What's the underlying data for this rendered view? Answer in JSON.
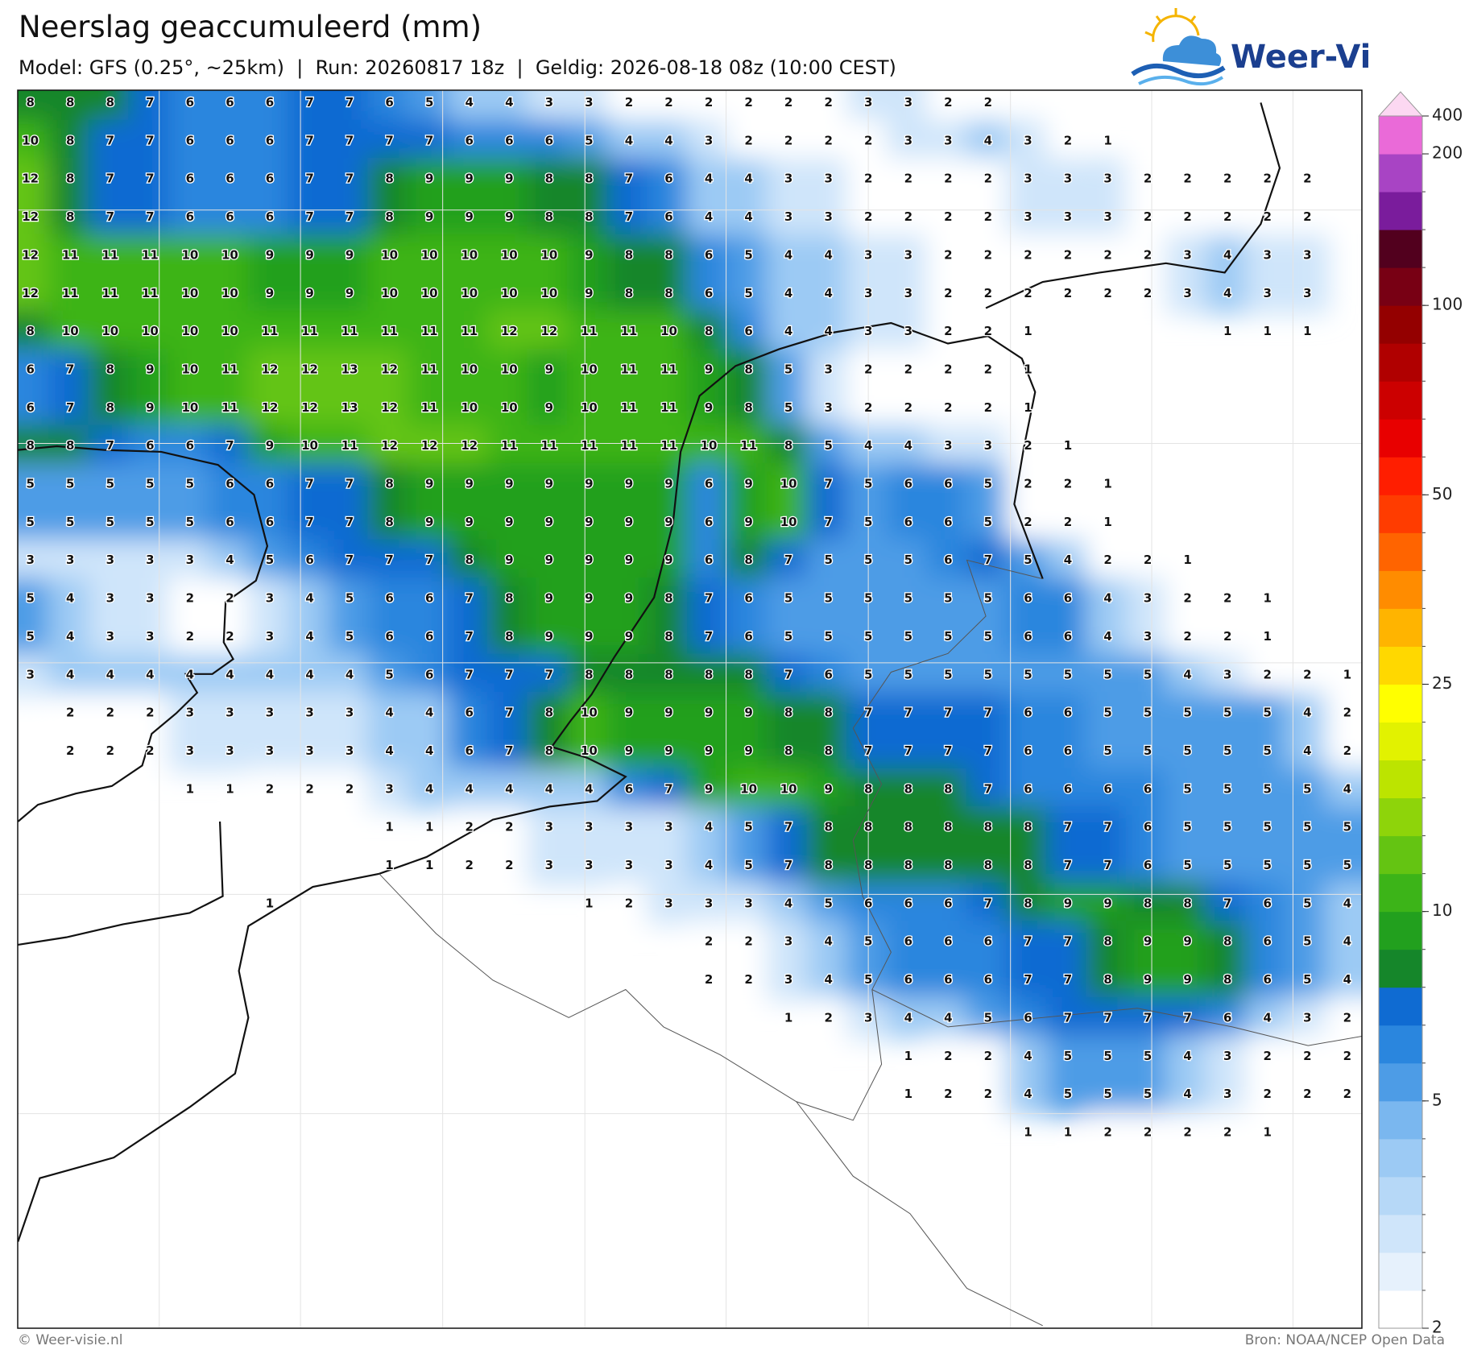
{
  "header": {
    "title": "Neerslag geaccumuleerd (mm)",
    "subtitle": "Model: GFS (0.25°, ~25km)  |  Run: 20260817 18z  |  Geldig: 2026-08-18 08z (10:00 CEST)"
  },
  "logo": {
    "text": "Weer-Visie"
  },
  "map": {
    "type": "grid-map",
    "rows": [
      [
        8,
        8,
        8,
        7,
        6,
        6,
        6,
        7,
        7,
        6,
        5,
        4,
        4,
        3,
        3,
        2,
        2,
        2,
        2,
        2,
        2,
        3,
        3,
        2,
        2,
        null,
        null,
        null,
        null,
        null,
        null,
        null,
        null,
        null
      ],
      [
        10,
        8,
        7,
        7,
        6,
        6,
        6,
        7,
        7,
        7,
        7,
        6,
        6,
        6,
        5,
        4,
        4,
        3,
        2,
        2,
        2,
        2,
        3,
        3,
        4,
        3,
        2,
        1,
        null,
        null,
        null,
        null,
        null,
        null
      ],
      [
        12,
        8,
        7,
        7,
        6,
        6,
        6,
        7,
        7,
        8,
        9,
        9,
        9,
        8,
        8,
        7,
        6,
        4,
        4,
        3,
        3,
        2,
        2,
        2,
        2,
        3,
        3,
        3,
        2,
        2,
        2,
        2,
        2,
        null
      ],
      [
        12,
        8,
        7,
        7,
        6,
        6,
        6,
        7,
        7,
        8,
        9,
        9,
        9,
        8,
        8,
        7,
        6,
        4,
        4,
        3,
        3,
        2,
        2,
        2,
        2,
        3,
        3,
        3,
        2,
        2,
        2,
        2,
        2,
        null
      ],
      [
        12,
        11,
        11,
        11,
        10,
        10,
        9,
        9,
        9,
        10,
        10,
        10,
        10,
        10,
        9,
        8,
        8,
        6,
        5,
        4,
        4,
        3,
        3,
        2,
        2,
        2,
        2,
        2,
        2,
        3,
        4,
        3,
        3,
        null
      ],
      [
        12,
        11,
        11,
        11,
        10,
        10,
        9,
        9,
        9,
        10,
        10,
        10,
        10,
        10,
        9,
        8,
        8,
        6,
        5,
        4,
        4,
        3,
        3,
        2,
        2,
        2,
        2,
        2,
        2,
        3,
        4,
        3,
        3,
        null
      ],
      [
        8,
        10,
        10,
        10,
        10,
        10,
        11,
        11,
        11,
        11,
        11,
        11,
        12,
        12,
        11,
        11,
        10,
        8,
        6,
        4,
        4,
        3,
        3,
        2,
        2,
        1,
        null,
        null,
        null,
        null,
        1,
        1,
        1,
        null
      ],
      [
        6,
        7,
        8,
        9,
        10,
        11,
        12,
        12,
        13,
        12,
        11,
        10,
        10,
        9,
        10,
        11,
        11,
        9,
        8,
        5,
        3,
        2,
        2,
        2,
        2,
        1,
        null,
        null,
        null,
        null,
        null,
        null,
        null,
        null
      ],
      [
        6,
        7,
        8,
        9,
        10,
        11,
        12,
        12,
        13,
        12,
        11,
        10,
        10,
        9,
        10,
        11,
        11,
        9,
        8,
        5,
        3,
        2,
        2,
        2,
        2,
        1,
        null,
        null,
        null,
        null,
        null,
        null,
        null,
        null
      ],
      [
        8,
        8,
        7,
        6,
        6,
        7,
        9,
        10,
        11,
        12,
        12,
        12,
        11,
        11,
        11,
        11,
        11,
        10,
        11,
        8,
        5,
        4,
        4,
        3,
        3,
        2,
        1,
        null,
        null,
        null,
        null,
        null,
        null,
        null
      ],
      [
        5,
        5,
        5,
        5,
        5,
        6,
        6,
        7,
        7,
        8,
        9,
        9,
        9,
        9,
        9,
        9,
        9,
        6,
        9,
        10,
        7,
        5,
        6,
        6,
        5,
        2,
        2,
        1,
        null,
        null,
        null,
        null,
        null,
        null
      ],
      [
        5,
        5,
        5,
        5,
        5,
        6,
        6,
        7,
        7,
        8,
        9,
        9,
        9,
        9,
        9,
        9,
        9,
        6,
        9,
        10,
        7,
        5,
        6,
        6,
        5,
        2,
        2,
        1,
        null,
        null,
        null,
        null,
        null,
        null
      ],
      [
        3,
        3,
        3,
        3,
        3,
        4,
        5,
        6,
        7,
        7,
        7,
        8,
        9,
        9,
        9,
        9,
        9,
        6,
        8,
        7,
        5,
        5,
        5,
        6,
        7,
        5,
        4,
        2,
        2,
        1,
        null,
        null,
        null,
        null
      ],
      [
        5,
        4,
        3,
        3,
        2,
        2,
        3,
        4,
        5,
        6,
        6,
        7,
        8,
        9,
        9,
        9,
        8,
        7,
        6,
        5,
        5,
        5,
        5,
        5,
        5,
        6,
        6,
        4,
        3,
        2,
        2,
        1,
        null,
        null
      ],
      [
        5,
        4,
        3,
        3,
        2,
        2,
        3,
        4,
        5,
        6,
        6,
        7,
        8,
        9,
        9,
        9,
        8,
        7,
        6,
        5,
        5,
        5,
        5,
        5,
        5,
        6,
        6,
        4,
        3,
        2,
        2,
        1,
        null,
        null
      ],
      [
        3,
        4,
        4,
        4,
        4,
        4,
        4,
        4,
        4,
        5,
        6,
        7,
        7,
        7,
        8,
        8,
        8,
        8,
        8,
        7,
        6,
        5,
        5,
        5,
        5,
        5,
        5,
        5,
        5,
        4,
        3,
        2,
        2,
        1
      ],
      [
        null,
        2,
        2,
        2,
        3,
        3,
        3,
        3,
        3,
        4,
        4,
        6,
        7,
        8,
        10,
        9,
        9,
        9,
        9,
        8,
        8,
        7,
        7,
        7,
        7,
        6,
        6,
        5,
        5,
        5,
        5,
        5,
        4,
        2
      ],
      [
        null,
        2,
        2,
        2,
        3,
        3,
        3,
        3,
        3,
        4,
        4,
        6,
        7,
        8,
        10,
        9,
        9,
        9,
        9,
        8,
        8,
        7,
        7,
        7,
        7,
        6,
        6,
        5,
        5,
        5,
        5,
        5,
        4,
        2
      ],
      [
        null,
        null,
        null,
        null,
        1,
        1,
        2,
        2,
        2,
        3,
        4,
        4,
        4,
        4,
        4,
        6,
        7,
        9,
        10,
        10,
        9,
        8,
        8,
        8,
        7,
        6,
        6,
        6,
        6,
        5,
        5,
        5,
        5,
        4
      ],
      [
        null,
        null,
        null,
        null,
        null,
        null,
        null,
        null,
        null,
        1,
        1,
        2,
        2,
        3,
        3,
        3,
        3,
        4,
        5,
        7,
        8,
        8,
        8,
        8,
        8,
        8,
        7,
        7,
        6,
        5,
        5,
        5,
        5,
        5
      ],
      [
        null,
        null,
        null,
        null,
        null,
        null,
        null,
        null,
        null,
        1,
        1,
        2,
        2,
        3,
        3,
        3,
        3,
        4,
        5,
        7,
        8,
        8,
        8,
        8,
        8,
        8,
        7,
        7,
        6,
        5,
        5,
        5,
        5,
        5
      ],
      [
        null,
        null,
        null,
        null,
        null,
        null,
        1,
        null,
        null,
        null,
        null,
        null,
        null,
        null,
        1,
        2,
        3,
        3,
        3,
        4,
        5,
        6,
        6,
        6,
        7,
        8,
        9,
        9,
        8,
        8,
        7,
        6,
        5,
        4
      ],
      [
        null,
        null,
        null,
        null,
        null,
        null,
        null,
        null,
        null,
        null,
        null,
        null,
        null,
        null,
        null,
        null,
        null,
        2,
        2,
        3,
        4,
        5,
        6,
        6,
        6,
        7,
        7,
        8,
        9,
        9,
        8,
        6,
        5,
        4
      ],
      [
        null,
        null,
        null,
        null,
        null,
        null,
        null,
        null,
        null,
        null,
        null,
        null,
        null,
        null,
        null,
        null,
        null,
        2,
        2,
        3,
        4,
        5,
        6,
        6,
        6,
        7,
        7,
        8,
        9,
        9,
        8,
        6,
        5,
        4
      ],
      [
        null,
        null,
        null,
        null,
        null,
        null,
        null,
        null,
        null,
        null,
        null,
        null,
        null,
        null,
        null,
        null,
        null,
        null,
        null,
        1,
        2,
        3,
        4,
        4,
        5,
        6,
        7,
        7,
        7,
        7,
        6,
        4,
        3,
        2
      ],
      [
        null,
        null,
        null,
        null,
        null,
        null,
        null,
        null,
        null,
        null,
        null,
        null,
        null,
        null,
        null,
        null,
        null,
        null,
        null,
        null,
        null,
        null,
        1,
        2,
        2,
        4,
        5,
        5,
        5,
        4,
        3,
        2,
        2,
        2
      ],
      [
        null,
        null,
        null,
        null,
        null,
        null,
        null,
        null,
        null,
        null,
        null,
        null,
        null,
        null,
        null,
        null,
        null,
        null,
        null,
        null,
        null,
        null,
        1,
        2,
        2,
        4,
        5,
        5,
        5,
        4,
        3,
        2,
        2,
        2
      ],
      [
        null,
        null,
        null,
        null,
        null,
        null,
        null,
        null,
        null,
        null,
        null,
        null,
        null,
        null,
        null,
        null,
        null,
        null,
        null,
        null,
        null,
        null,
        null,
        null,
        null,
        1,
        1,
        2,
        2,
        2,
        2,
        1,
        null,
        null
      ]
    ]
  },
  "colorbar": {
    "levels": [
      2,
      2.5,
      3,
      3.5,
      4,
      4.5,
      5,
      6,
      7,
      8,
      9,
      10,
      12,
      14,
      16,
      18,
      20,
      25,
      30,
      35,
      40,
      45,
      50,
      60,
      70,
      80,
      90,
      100,
      125,
      150,
      175,
      200,
      400
    ],
    "colors": [
      "#ffffff",
      "#e6f1fc",
      "#cfe5fa",
      "#b6d8f7",
      "#9ccaf4",
      "#7ab7ef",
      "#4d9ce6",
      "#2a86de",
      "#0f6bd2",
      "#15862a",
      "#22a01e",
      "#3cb418",
      "#64c412",
      "#8ed40a",
      "#bce400",
      "#e2f200",
      "#ffff00",
      "#ffd800",
      "#ffb400",
      "#ff8c00",
      "#ff6400",
      "#ff3c00",
      "#ff1e00",
      "#e80000",
      "#cc0000",
      "#b00000",
      "#940000",
      "#780014",
      "#52001e",
      "#7a1c9c",
      "#a844c4",
      "#ea6ad8"
    ],
    "extend_color": "#fcd8f2",
    "ticks": [
      2,
      5,
      10,
      25,
      50,
      100,
      200,
      400
    ]
  },
  "footer": {
    "left": "© Weer-visie.nl",
    "right": "Bron: NOAA/NCEP Open Data"
  }
}
